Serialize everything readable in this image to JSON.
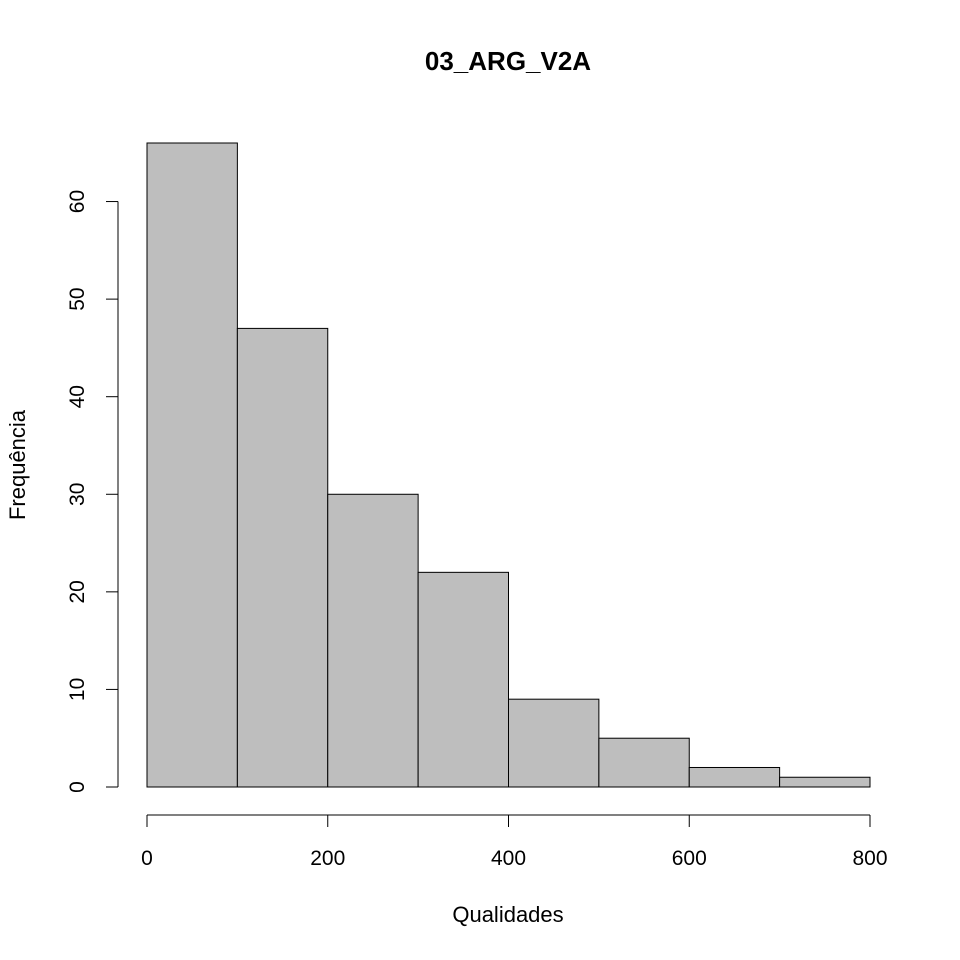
{
  "chart_data": {
    "type": "bar",
    "title": "03_ARG_V2A",
    "xlabel": "Qualidades",
    "ylabel": "Frequência",
    "bins": [
      {
        "from": 0,
        "to": 100,
        "count": 66
      },
      {
        "from": 100,
        "to": 200,
        "count": 47
      },
      {
        "from": 200,
        "to": 300,
        "count": 30
      },
      {
        "from": 300,
        "to": 400,
        "count": 22
      },
      {
        "from": 400,
        "to": 500,
        "count": 9
      },
      {
        "from": 500,
        "to": 600,
        "count": 5
      },
      {
        "from": 600,
        "to": 700,
        "count": 2
      },
      {
        "from": 700,
        "to": 800,
        "count": 1
      }
    ],
    "xlim": [
      0,
      800
    ],
    "ylim": [
      0,
      66
    ],
    "x_ticks": [
      0,
      200,
      400,
      600,
      800
    ],
    "y_ticks": [
      0,
      10,
      20,
      30,
      40,
      50,
      60
    ],
    "bar_color": "#bebebe",
    "grid": false,
    "legend": "none"
  }
}
